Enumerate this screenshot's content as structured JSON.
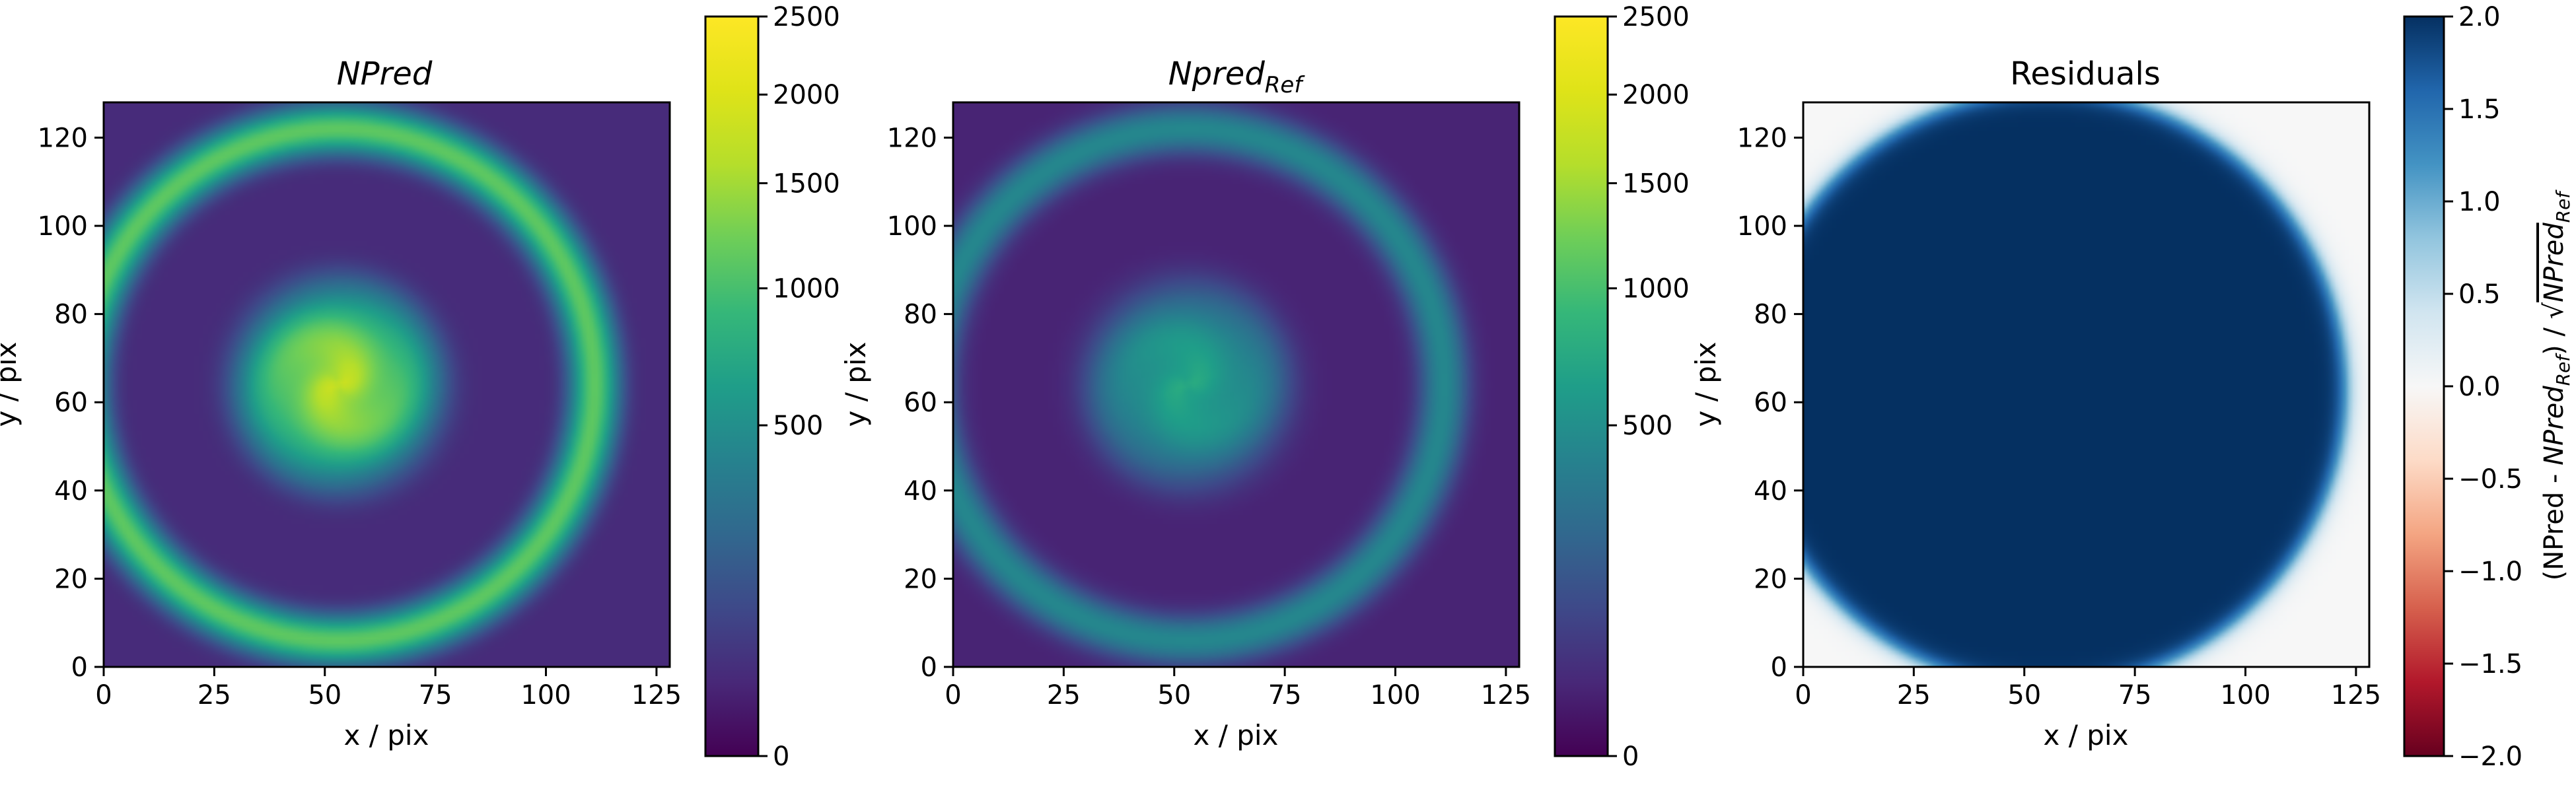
{
  "chart_data": [
    {
      "type": "heatmap",
      "title": "NPred",
      "title_style": "italic",
      "xlabel": "x / pix",
      "ylabel": "y / pix",
      "xlim": [
        0,
        128
      ],
      "ylim": [
        0,
        128
      ],
      "xticks": [
        0,
        25,
        50,
        75,
        100,
        125
      ],
      "yticks": [
        0,
        20,
        40,
        60,
        80,
        100,
        120
      ],
      "colormap": "viridis",
      "colorbar": {
        "scale": "sqrt",
        "range": [
          0,
          2500
        ],
        "ticks": [
          0,
          500,
          1000,
          1500,
          2000,
          2500
        ]
      },
      "features": {
        "center": [
          53,
          64
        ],
        "core_peak": 1800,
        "core_level": 1400,
        "core_radius": 20,
        "ring_radius": 58,
        "ring_level": 1100,
        "background": 30
      }
    },
    {
      "type": "heatmap",
      "title_main": "Npred",
      "title_sub": "Ref",
      "title_style": "italic",
      "xlabel": "x / pix",
      "ylabel": "y / pix",
      "xlim": [
        0,
        128
      ],
      "ylim": [
        0,
        128
      ],
      "xticks": [
        0,
        25,
        50,
        75,
        100,
        125
      ],
      "yticks": [
        0,
        20,
        40,
        60,
        80,
        100,
        120
      ],
      "colormap": "viridis",
      "colorbar": {
        "scale": "sqrt",
        "range": [
          0,
          2500
        ],
        "ticks": [
          0,
          500,
          1000,
          1500,
          2000,
          2500
        ]
      },
      "features": {
        "center": [
          53,
          64
        ],
        "core_peak": 750,
        "core_level": 600,
        "core_radius": 20,
        "ring_radius": 58,
        "ring_level": 420,
        "background": 20
      }
    },
    {
      "type": "heatmap",
      "title": "Residuals",
      "xlabel": "x / pix",
      "ylabel": "y / pix",
      "xlim": [
        0,
        128
      ],
      "ylim": [
        0,
        128
      ],
      "xticks": [
        0,
        25,
        50,
        75,
        100,
        125
      ],
      "yticks": [
        0,
        20,
        40,
        60,
        80,
        100,
        120
      ],
      "colormap": "RdBu",
      "colorbar": {
        "scale": "linear",
        "range": [
          -2.0,
          2.0
        ],
        "ticks": [
          2.0,
          1.5,
          1.0,
          0.5,
          0.0,
          -0.5,
          -1.0,
          -1.5,
          -2.0
        ],
        "tick_labels": [
          "2.0",
          "1.5",
          "1.0",
          "0.5",
          "0.0",
          "−0.5",
          "−1.0",
          "−1.5",
          "−2.0"
        ],
        "label_parts": [
          "(NPred - ",
          "NPred",
          "Ref",
          ") / ",
          "√",
          "NPred",
          "Ref"
        ]
      },
      "features": {
        "disk_center": [
          55,
          63
        ],
        "disk_radius": 68,
        "disk_value": 2.0,
        "outside_value": 0.0
      }
    }
  ]
}
